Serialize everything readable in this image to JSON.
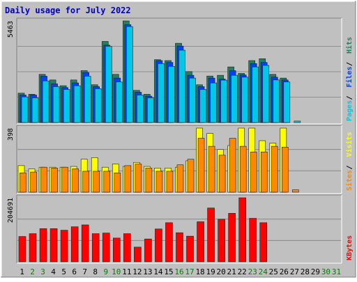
{
  "chart_data": {
    "type": "bar",
    "title": "Daily usage for July 2022",
    "days": [
      "1",
      "2",
      "3",
      "4",
      "5",
      "6",
      "7",
      "8",
      "9",
      "10",
      "11",
      "12",
      "13",
      "14",
      "15",
      "16",
      "17",
      "18",
      "19",
      "20",
      "21",
      "22",
      "23",
      "24",
      "25",
      "26",
      "27",
      "28",
      "29",
      "30",
      "31"
    ],
    "weekend_days": [
      "2",
      "3",
      "9",
      "10",
      "16",
      "17",
      "23",
      "24",
      "30",
      "31"
    ],
    "panels": [
      {
        "id": "hits_files_pages",
        "max_label": "5463",
        "ylim": [
          0,
          5463
        ],
        "legend": [
          {
            "label": "Pages",
            "color": "#00c8e8"
          },
          {
            "label": "Files",
            "color": "#0040ff"
          },
          {
            "label": "Hits",
            "color": "#208060"
          }
        ],
        "series": [
          {
            "name": "Hits",
            "color": "#208060",
            "values": [
              1580,
              1520,
              2590,
              2290,
              1980,
              2290,
              2790,
              2030,
              4360,
              2590,
              5463,
              1730,
              1520,
              3380,
              3330,
              4260,
              2740,
              2030,
              2500,
              2540,
              2990,
              2640,
              3330,
              3430,
              2590,
              2390,
              0,
              0,
              0,
              0,
              0
            ]
          },
          {
            "name": "Files",
            "color": "#0040ff",
            "values": [
              1480,
              1480,
              2490,
              2080,
              1880,
              2130,
              2690,
              1930,
              4160,
              2390,
              5260,
              1630,
              1420,
              3330,
              3230,
              4110,
              2540,
              1930,
              2390,
              2340,
              2790,
              2560,
              3170,
              3230,
              2440,
              2290,
              0,
              0,
              0,
              0,
              0
            ]
          },
          {
            "name": "Pages",
            "color": "#00c8e8",
            "values": [
              1380,
              1330,
              2240,
              1930,
              1780,
              1980,
              2490,
              1820,
              4100,
              2180,
              5160,
              1480,
              1330,
              3170,
              3020,
              3890,
              2390,
              1780,
              2130,
              2280,
              2540,
              2440,
              2990,
              3070,
              2290,
              2180,
              80,
              0,
              0,
              0,
              0
            ]
          }
        ]
      },
      {
        "id": "visits_sites",
        "max_label": "398",
        "ylim": [
          0,
          398
        ],
        "legend": [
          {
            "label": "Sites",
            "color": "#ff8800"
          },
          {
            "label": "Visits",
            "color": "#ffff00"
          }
        ],
        "series": [
          {
            "name": "Visits",
            "color": "#ffff00",
            "values": [
              165,
              145,
              155,
              155,
              155,
              160,
              205,
              215,
              155,
              175,
              160,
              185,
              160,
              150,
              150,
              155,
              195,
              398,
              365,
              265,
              290,
              398,
              398,
              320,
              305,
              398,
              0,
              0,
              0,
              0,
              0
            ]
          },
          {
            "name": "Sites",
            "color": "#ff8800",
            "values": [
              120,
              125,
              155,
              150,
              155,
              145,
              130,
              130,
              130,
              120,
              165,
              175,
              150,
              130,
              130,
              170,
              205,
              335,
              285,
              230,
              335,
              285,
              250,
              250,
              285,
              280,
              15,
              0,
              0,
              0,
              0
            ]
          }
        ]
      },
      {
        "id": "kbytes",
        "max_label": "204691",
        "ylim": [
          0,
          204691
        ],
        "legend": [
          {
            "label": "KBytes",
            "color": "#ff0000"
          }
        ],
        "series": [
          {
            "name": "KBytes",
            "color": "#ff0000",
            "values": [
              81000,
              90000,
              106000,
              106000,
              101000,
              112000,
              118000,
              90000,
              92000,
              76000,
              90000,
              47000,
              73000,
              105000,
              125000,
              93000,
              82000,
              128000,
              172000,
              136000,
              155000,
              204691,
              139000,
              125000,
              0,
              0,
              0,
              0,
              0,
              0,
              0
            ]
          }
        ]
      }
    ]
  }
}
